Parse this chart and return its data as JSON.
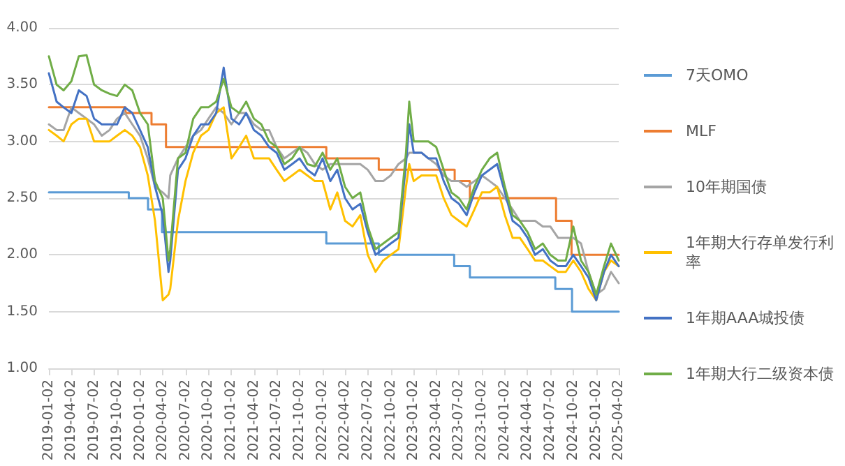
{
  "chart_data": {
    "type": "line",
    "xlim": [
      "2019-01-02",
      "2025-04-02"
    ],
    "xticks": [
      "2019-01-02",
      "2019-04-02",
      "2019-07-02",
      "2019-10-02",
      "2020-01-02",
      "2020-04-02",
      "2020-07-02",
      "2020-10-02",
      "2021-01-02",
      "2021-04-02",
      "2021-07-02",
      "2021-10-02",
      "2022-01-02",
      "2022-04-02",
      "2022-07-02",
      "2022-10-02",
      "2023-01-02",
      "2023-04-02",
      "2023-07-02",
      "2023-10-02",
      "2024-01-02",
      "2024-04-02",
      "2024-07-02",
      "2024-10-02",
      "2025-01-02",
      "2025-04-02"
    ],
    "ylim": [
      1,
      4
    ],
    "yticks": [
      {
        "value": 1,
        "label": "1.00"
      },
      {
        "value": 1.5,
        "label": "1.50"
      },
      {
        "value": 2,
        "label": "2.00"
      },
      {
        "value": 2.5,
        "label": "2.50"
      },
      {
        "value": 3,
        "label": "3.00"
      },
      {
        "value": 3.5,
        "label": "3.50"
      },
      {
        "value": 4,
        "label": "4.00"
      }
    ],
    "x": [
      "2019-01-02",
      "2019-02-02",
      "2019-03-02",
      "2019-04-02",
      "2019-05-02",
      "2019-06-02",
      "2019-07-02",
      "2019-08-02",
      "2019-09-02",
      "2019-10-02",
      "2019-11-02",
      "2019-12-02",
      "2020-01-02",
      "2020-02-02",
      "2020-03-02",
      "2020-04-02",
      "2020-04-25",
      "2020-05-02",
      "2020-06-02",
      "2020-07-02",
      "2020-08-02",
      "2020-09-02",
      "2020-10-02",
      "2020-11-02",
      "2020-12-02",
      "2021-01-02",
      "2021-02-02",
      "2021-03-02",
      "2021-04-02",
      "2021-05-02",
      "2021-06-02",
      "2021-07-02",
      "2021-08-02",
      "2021-09-02",
      "2021-10-02",
      "2021-11-02",
      "2021-12-02",
      "2022-01-02",
      "2022-02-02",
      "2022-03-02",
      "2022-04-02",
      "2022-05-02",
      "2022-06-02",
      "2022-07-02",
      "2022-08-02",
      "2022-09-02",
      "2022-10-02",
      "2022-11-02",
      "2022-12-02",
      "2022-12-15",
      "2023-01-02",
      "2023-02-02",
      "2023-03-02",
      "2023-04-02",
      "2023-05-02",
      "2023-06-02",
      "2023-07-02",
      "2023-08-02",
      "2023-09-02",
      "2023-10-02",
      "2023-11-02",
      "2023-12-02",
      "2024-01-02",
      "2024-02-02",
      "2024-03-02",
      "2024-04-02",
      "2024-05-02",
      "2024-06-02",
      "2024-07-02",
      "2024-08-02",
      "2024-09-02",
      "2024-10-02",
      "2024-11-02",
      "2024-12-02",
      "2025-01-02",
      "2025-02-02",
      "2025-03-02",
      "2025-04-02"
    ],
    "series": [
      {
        "name": "7天OMO",
        "type": "step",
        "color": "#5b9bd5",
        "x": [
          "2019-01-02",
          "2019-11-18",
          "2020-02-03",
          "2020-03-30",
          "2022-01-17",
          "2022-08-15",
          "2023-06-13",
          "2023-08-15",
          "2024-07-22",
          "2024-09-27",
          "2025-04-02"
        ],
        "values": [
          2.55,
          2.5,
          2.4,
          2.2,
          2.1,
          2.0,
          1.9,
          1.8,
          1.7,
          1.5,
          1.5
        ]
      },
      {
        "name": "MLF",
        "type": "step",
        "color": "#ed7d31",
        "x": [
          "2019-01-02",
          "2019-11-05",
          "2020-02-17",
          "2020-04-15",
          "2022-01-17",
          "2022-08-15",
          "2023-06-15",
          "2023-08-15",
          "2024-07-25",
          "2024-09-25",
          "2025-04-02"
        ],
        "values": [
          3.3,
          3.25,
          3.15,
          2.95,
          2.85,
          2.75,
          2.65,
          2.5,
          2.3,
          2.0,
          2.0
        ]
      },
      {
        "name": "10年期国债",
        "color": "#a5a5a5",
        "values": [
          3.15,
          3.1,
          3.1,
          3.3,
          3.25,
          3.2,
          3.15,
          3.05,
          3.1,
          3.2,
          3.25,
          3.15,
          3.05,
          2.85,
          2.6,
          2.55,
          2.5,
          2.7,
          2.85,
          2.95,
          3.05,
          3.1,
          3.2,
          3.3,
          3.25,
          3.15,
          3.25,
          3.25,
          3.15,
          3.1,
          3.1,
          2.95,
          2.85,
          2.9,
          2.95,
          2.9,
          2.8,
          2.75,
          2.8,
          2.8,
          2.8,
          2.8,
          2.8,
          2.75,
          2.65,
          2.65,
          2.7,
          2.8,
          2.85,
          2.9,
          2.9,
          2.9,
          2.85,
          2.8,
          2.7,
          2.65,
          2.65,
          2.6,
          2.65,
          2.7,
          2.65,
          2.6,
          2.5,
          2.4,
          2.3,
          2.3,
          2.3,
          2.25,
          2.25,
          2.15,
          2.15,
          2.15,
          2.1,
          1.85,
          1.65,
          1.7,
          1.85,
          1.75
        ]
      },
      {
        "name": "1年期大行存单发行利率",
        "color": "#ffc000",
        "values": [
          3.1,
          3.05,
          3.0,
          3.15,
          3.2,
          3.2,
          3.0,
          3.0,
          3.0,
          3.05,
          3.1,
          3.05,
          2.95,
          2.7,
          2.3,
          1.6,
          1.65,
          1.7,
          2.3,
          2.65,
          2.9,
          3.05,
          3.1,
          3.25,
          3.3,
          2.85,
          2.95,
          3.05,
          2.85,
          2.85,
          2.85,
          2.75,
          2.65,
          2.7,
          2.75,
          2.7,
          2.65,
          2.65,
          2.4,
          2.55,
          2.3,
          2.25,
          2.35,
          2.0,
          1.85,
          1.95,
          2.0,
          2.05,
          2.6,
          2.8,
          2.65,
          2.7,
          2.7,
          2.7,
          2.5,
          2.35,
          2.3,
          2.25,
          2.4,
          2.55,
          2.55,
          2.6,
          2.35,
          2.15,
          2.15,
          2.05,
          1.95,
          1.95,
          1.9,
          1.85,
          1.85,
          1.95,
          1.85,
          1.7,
          1.6,
          1.85,
          1.95,
          1.9
        ]
      },
      {
        "name": "1年期AAA城投债",
        "color": "#4472c4",
        "values": [
          3.6,
          3.35,
          3.3,
          3.25,
          3.45,
          3.4,
          3.2,
          3.15,
          3.15,
          3.15,
          3.3,
          3.25,
          3.1,
          2.95,
          2.6,
          2.35,
          1.85,
          1.95,
          2.75,
          2.85,
          3.05,
          3.15,
          3.15,
          3.25,
          3.65,
          3.2,
          3.15,
          3.25,
          3.1,
          3.05,
          2.95,
          2.9,
          2.75,
          2.8,
          2.85,
          2.75,
          2.7,
          2.85,
          2.65,
          2.75,
          2.5,
          2.4,
          2.45,
          2.2,
          2.0,
          2.05,
          2.1,
          2.15,
          2.8,
          3.15,
          2.9,
          2.9,
          2.85,
          2.85,
          2.65,
          2.5,
          2.45,
          2.35,
          2.55,
          2.7,
          2.75,
          2.8,
          2.55,
          2.3,
          2.25,
          2.15,
          2.0,
          2.05,
          1.95,
          1.9,
          1.9,
          2.0,
          1.9,
          1.8,
          1.6,
          1.85,
          2.0,
          1.9
        ]
      },
      {
        "name": "1年期大行二级资本债",
        "color": "#70ad47",
        "values": [
          3.75,
          3.5,
          3.45,
          3.53,
          3.75,
          3.76,
          3.5,
          3.45,
          3.42,
          3.4,
          3.5,
          3.45,
          3.25,
          3.15,
          2.65,
          2.5,
          1.95,
          2.05,
          2.85,
          2.9,
          3.2,
          3.3,
          3.3,
          3.35,
          3.55,
          3.3,
          3.25,
          3.35,
          3.2,
          3.15,
          3.0,
          2.95,
          2.8,
          2.85,
          2.95,
          2.8,
          2.78,
          2.9,
          2.75,
          2.85,
          2.6,
          2.5,
          2.55,
          2.25,
          2.05,
          2.1,
          2.15,
          2.2,
          2.9,
          3.35,
          3.0,
          3.0,
          3.0,
          2.95,
          2.75,
          2.55,
          2.5,
          2.4,
          2.6,
          2.75,
          2.85,
          2.9,
          2.6,
          2.35,
          2.3,
          2.2,
          2.05,
          2.1,
          2.0,
          1.95,
          1.95,
          2.25,
          1.95,
          1.85,
          1.65,
          1.9,
          2.1,
          1.95
        ]
      }
    ],
    "grid": "y",
    "legend": "right",
    "marker": "none",
    "line_style": "solid"
  }
}
